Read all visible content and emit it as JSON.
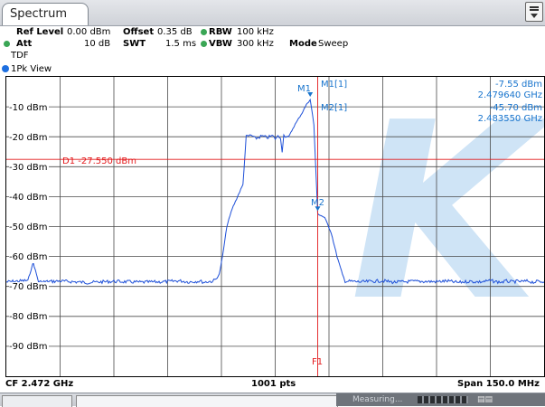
{
  "tab": {
    "title": "Spectrum"
  },
  "settings": {
    "ref_level_label": "Ref Level",
    "ref_level_value": "0.00 dBm",
    "offset_label": "Offset",
    "offset_value": "0.35 dB",
    "rbw_label": "RBW",
    "rbw_value": "100 kHz",
    "att_label": "Att",
    "att_value": "10 dB",
    "swt_label": "SWT",
    "swt_value": "1.5 ms",
    "vbw_label": "VBW",
    "vbw_value": "300 kHz",
    "mode_label": "Mode",
    "mode_value": "Sweep",
    "tdf_label": "TDF"
  },
  "view": {
    "label": "1Pk View"
  },
  "y_ticks": [
    "-10 dBm",
    "-20 dBm",
    "-30 dBm",
    "-40 dBm",
    "-50 dBm",
    "-60 dBm",
    "-70 dBm",
    "-80 dBm",
    "-90 dBm"
  ],
  "markers": {
    "m1_name": "M1[1]",
    "m1_level": "-7.55 dBm",
    "m1_freq": "2.479640 GHz",
    "m2_name": "M2[1]",
    "m2_level": "-45.70 dBm",
    "m2_freq": "2.483550 GHz",
    "m1_tag": "M1",
    "m2_tag": "M2"
  },
  "display_line": {
    "label": "D1  -27.550 dBm"
  },
  "freq_line": {
    "label": "F1"
  },
  "footer": {
    "center_freq": "CF 2.472 GHz",
    "points": "1001 pts",
    "span": "Span 150.0 MHz"
  },
  "statusbar": {
    "measuring": "Measuring..."
  },
  "colors": {
    "trace": "#1d4fd8",
    "marker": "#1874cd",
    "limit_line": "#e31a1c",
    "watermark": "#cfe4f6"
  },
  "chart_data": {
    "type": "line",
    "ylim": [
      -100,
      0
    ],
    "series": [
      {
        "values": [
          -68.5,
          -68,
          -62,
          -68.5,
          -68.2,
          -68.7,
          -68.3,
          -68.6,
          -68.4,
          -68.1,
          -68.5,
          -68.2,
          -68.6,
          -68.4,
          -68.3,
          -68,
          -67.5,
          -66,
          -60,
          -50,
          -44,
          -40,
          -36,
          -20,
          -19.5,
          -20.5,
          -19.8,
          -20.3,
          -19.7,
          -20.6,
          -19.9,
          -20.4,
          -25,
          -19.5,
          -20.1,
          -16.5,
          -12,
          -8,
          -7.55,
          -16,
          -45.7,
          -47,
          -52,
          -60,
          -66,
          -68.2,
          -68.5,
          -68.1,
          -68.6,
          -68.3,
          -68.4,
          -68.2,
          -68.7,
          -68.3,
          -68.5,
          -68.1,
          -68.4,
          -68.6,
          -68.2,
          -68.5,
          -68.3,
          -68.4,
          -68.2,
          -68.6,
          -68.3,
          -68.5
        ],
        "x_pct": [
          0,
          4,
          5,
          6,
          10,
          15,
          20,
          25,
          30,
          32,
          34,
          36,
          36.7,
          37.5,
          38.3,
          38.6,
          39,
          39.6,
          40.2,
          41,
          42,
          43,
          44,
          44.6,
          45.5,
          46.5,
          47.5,
          48.5,
          49.5,
          50,
          50.5,
          51,
          51.3,
          51.6,
          52.5,
          53.5,
          55,
          56.2,
          56.5,
          57.2,
          57.9,
          59.2,
          60.4,
          61.5,
          62.5,
          63,
          66,
          70,
          72,
          76,
          80,
          82,
          84,
          86,
          88,
          90,
          91,
          92,
          93,
          94,
          95,
          96,
          97,
          98,
          99,
          100
        ]
      }
    ]
  }
}
